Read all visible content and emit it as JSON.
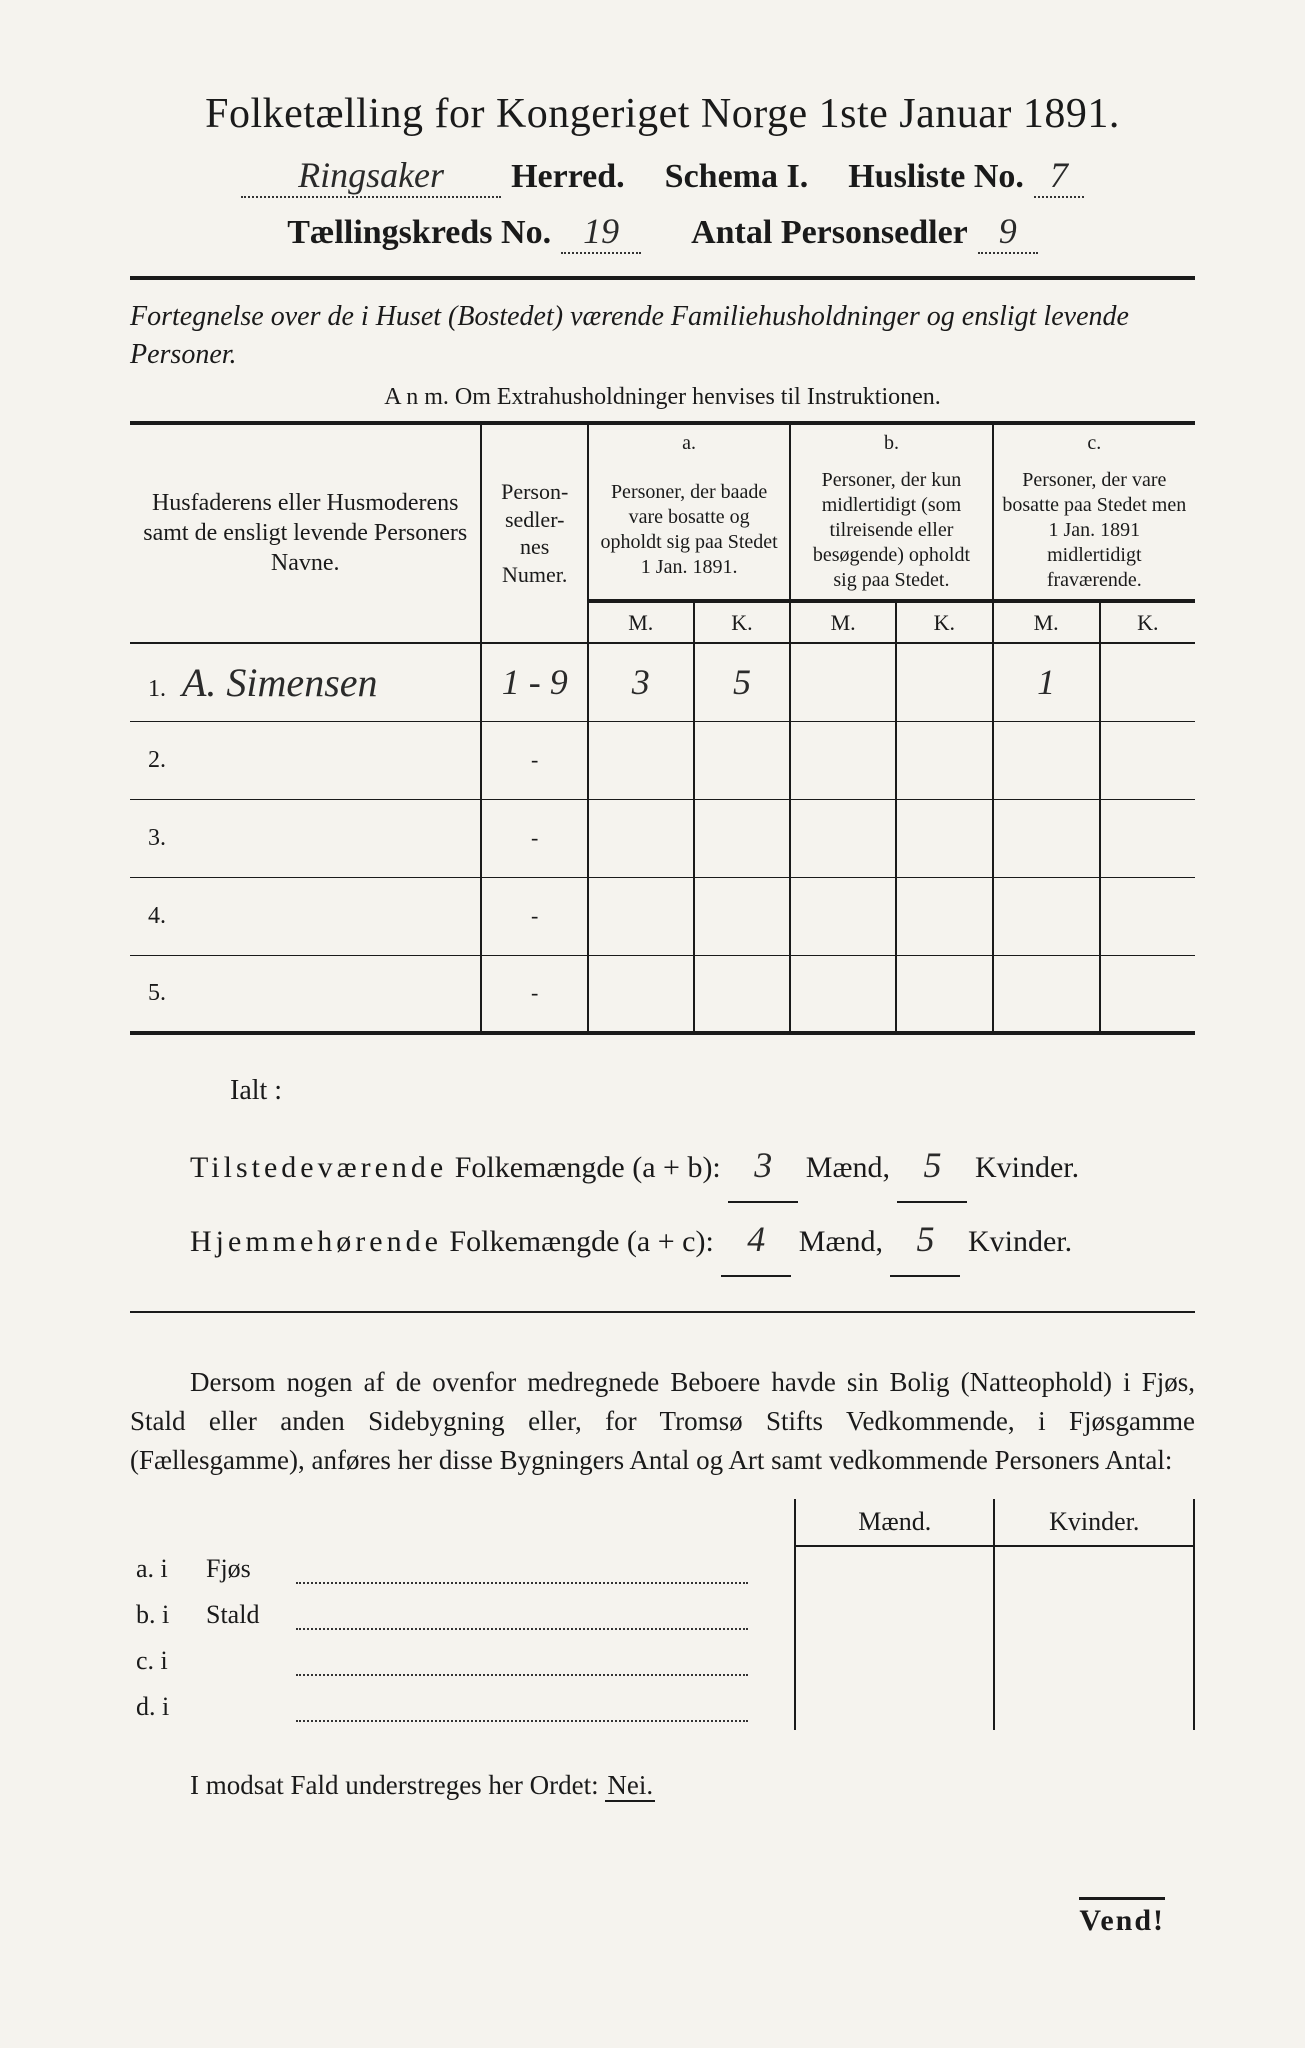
{
  "title": "Folketælling for Kongeriget Norge 1ste Januar 1891.",
  "header": {
    "herred_value": "Ringsaker",
    "herred_label": "Herred.",
    "schema_label": "Schema I.",
    "husliste_label": "Husliste No.",
    "husliste_value": "7",
    "kreds_label": "Tællingskreds No.",
    "kreds_value": "19",
    "antal_label": "Antal Personsedler",
    "antal_value": "9"
  },
  "subtitle": "Fortegnelse over de i Huset (Bostedet) værende Familiehusholdninger og ensligt levende Personer.",
  "anm": "A n m.  Om Extrahusholdninger henvises til Instruktionen.",
  "columns": {
    "names": "Husfaderens eller Husmoderens samt de ensligt levende Personers Navne.",
    "numer": "Person-sedler-nes Numer.",
    "a_label": "a.",
    "a_text": "Personer, der baade vare bosatte og opholdt sig paa Stedet 1 Jan. 1891.",
    "b_label": "b.",
    "b_text": "Personer, der kun midlertidigt (som tilreisende eller besøgende) opholdt sig paa Stedet.",
    "c_label": "c.",
    "c_text": "Personer, der vare bosatte paa Stedet men 1 Jan. 1891 midlertidigt fraværende.",
    "m": "M.",
    "k": "K."
  },
  "rows": [
    {
      "n": "1.",
      "name": "A. Simensen",
      "numer": "1 - 9",
      "aM": "3",
      "aK": "5",
      "bM": "",
      "bK": "",
      "cM": "1",
      "cK": ""
    },
    {
      "n": "2.",
      "name": "",
      "numer": "-",
      "aM": "",
      "aK": "",
      "bM": "",
      "bK": "",
      "cM": "",
      "cK": ""
    },
    {
      "n": "3.",
      "name": "",
      "numer": "-",
      "aM": "",
      "aK": "",
      "bM": "",
      "bK": "",
      "cM": "",
      "cK": ""
    },
    {
      "n": "4.",
      "name": "",
      "numer": "-",
      "aM": "",
      "aK": "",
      "bM": "",
      "bK": "",
      "cM": "",
      "cK": ""
    },
    {
      "n": "5.",
      "name": "",
      "numer": "-",
      "aM": "",
      "aK": "",
      "bM": "",
      "bK": "",
      "cM": "",
      "cK": ""
    }
  ],
  "ialt": {
    "label": "Ialt :",
    "line1_a": "Tilstedeværende",
    "line1_b": "Folkemængde (a + b):",
    "line1_m": "3",
    "line1_k": "5",
    "line2_a": "Hjemmehørende",
    "line2_b": "Folkemængde (a + c):",
    "line2_m": "4",
    "line2_k": "5",
    "maend": "Mænd,",
    "kvinder": "Kvinder."
  },
  "para": "Dersom nogen af de ovenfor medregnede Beboere havde sin Bolig (Natteophold) i Fjøs, Stald eller anden Sidebygning eller, for Tromsø Stifts Vedkommende, i Fjøsgamme (Fællesgamme), anføres her disse Bygningers Antal og Art samt vedkommende Personers Antal:",
  "mk": {
    "maend": "Mænd.",
    "kvinder": "Kvinder.",
    "rows": [
      {
        "l": "a.  i",
        "t": "Fjøs"
      },
      {
        "l": "b.  i",
        "t": "Stald"
      },
      {
        "l": "c.  i",
        "t": ""
      },
      {
        "l": "d.  i",
        "t": ""
      }
    ]
  },
  "footer": "I modsat Fald understreges her Ordet:",
  "nei": "Nei.",
  "vend": "Vend!"
}
